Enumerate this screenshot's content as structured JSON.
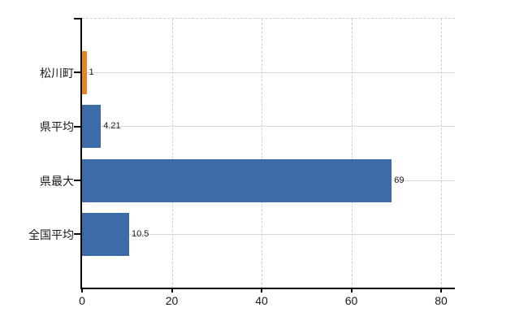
{
  "chart_data": {
    "type": "bar",
    "orientation": "horizontal",
    "title": "",
    "xlabel": "",
    "ylabel": "",
    "categories": [
      "松川町",
      "県平均",
      "県最大",
      "全国平均"
    ],
    "values": [
      1,
      4.21,
      69,
      10.5
    ],
    "value_labels": [
      "1",
      "4.21",
      "69",
      "10.5"
    ],
    "bar_colors": [
      "#EB8320",
      "#3C6CA7",
      "#3C6CA7",
      "#3C6CA7"
    ],
    "x_tick_labels": [
      "0",
      "20",
      "40",
      "60",
      "80"
    ],
    "x_tick_values": [
      0,
      20,
      40,
      60,
      80
    ],
    "xlim": [
      0,
      83
    ],
    "legend": "none",
    "grid": "on",
    "background_color": "#ffffff",
    "axis_color": "#000000",
    "gridline_color": "#d9d9d9"
  }
}
